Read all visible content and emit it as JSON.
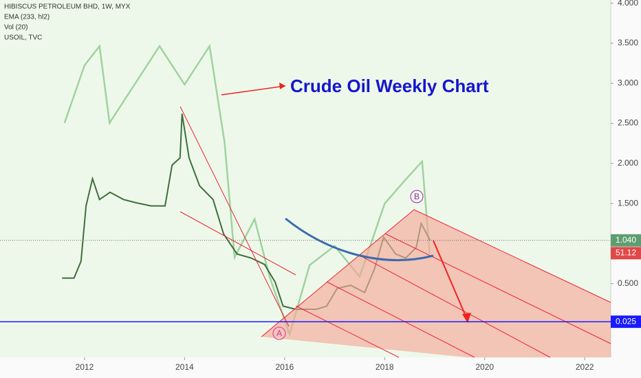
{
  "chart_data": {
    "type": "line",
    "legend_lines": [
      "HIBISCUS PETROLEUM BHD, 1W, MYX",
      "EMA (233, hl2)",
      "Vol (20)",
      "USOIL, TVC"
    ],
    "annotation": "Crude Oil Weekly Chart",
    "point_labels": [
      "A",
      "B"
    ],
    "xlim": [
      2010.31,
      2022.52
    ],
    "xticks": [
      2012,
      2014,
      2016,
      2018,
      2020,
      2022
    ],
    "ylim": [
      -0.42,
      4.04
    ],
    "yticks": [
      {
        "value": 0.5,
        "label": "0.500"
      },
      {
        "value": 1.0,
        "label": "1.000"
      },
      {
        "value": 1.5,
        "label": "1.500"
      },
      {
        "value": 2.0,
        "label": "2.000"
      },
      {
        "value": 2.5,
        "label": "2.500"
      },
      {
        "value": 3.0,
        "label": "3.000"
      },
      {
        "value": 3.5,
        "label": "3.500"
      },
      {
        "value": 4.0,
        "label": "4.000"
      }
    ],
    "y2lim": [
      24,
      117
    ],
    "hline": {
      "value": 0.025,
      "label": "0.025",
      "color": "#1a1aff"
    },
    "last_price": {
      "value": 1.04,
      "label": "1.040"
    },
    "oil_last": {
      "value": 51.12,
      "label": "51.12"
    },
    "series": [
      {
        "name": "HIBISCUS PETROLEUM BHD",
        "color": "#3d6e3d",
        "x": [
          2011.55,
          2011.79,
          2011.93,
          2012.03,
          2012.16,
          2012.3,
          2012.51,
          2012.78,
          2013.03,
          2013.33,
          2013.61,
          2013.75,
          2013.91,
          2013.95,
          2014.09,
          2014.3,
          2014.57,
          2014.78,
          2015.05,
          2015.33,
          2015.6,
          2015.81,
          2015.97,
          2016.22,
          2016.64,
          2016.84,
          2017.05,
          2017.32,
          2017.6,
          2017.8,
          2017.98,
          2018.22,
          2018.42,
          2018.63,
          2018.73,
          2018.91
        ],
        "values": [
          0.57,
          0.57,
          0.78,
          1.47,
          1.81,
          1.55,
          1.64,
          1.55,
          1.51,
          1.47,
          1.47,
          1.98,
          2.07,
          2.62,
          2.07,
          1.72,
          1.55,
          1.12,
          0.87,
          0.82,
          0.74,
          0.52,
          0.22,
          0.18,
          0.18,
          0.22,
          0.44,
          0.48,
          0.39,
          0.69,
          1.08,
          0.87,
          0.82,
          0.95,
          1.25,
          1.04
        ]
      },
      {
        "name": "USOIL",
        "color": "#9fd39f",
        "axis": "y2",
        "x": [
          2011.6,
          2012.0,
          2012.3,
          2012.5,
          2013.0,
          2013.5,
          2014.0,
          2014.5,
          2014.8,
          2015.0,
          2015.4,
          2015.7,
          2016.1,
          2016.5,
          2017.0,
          2017.5,
          2018.0,
          2018.4,
          2018.75,
          2018.9
        ],
        "values": [
          85,
          100,
          105,
          85,
          95,
          105,
          95,
          105,
          80,
          50,
          60,
          45,
          30,
          48,
          53,
          45,
          64,
          70,
          75,
          51
        ]
      }
    ]
  }
}
